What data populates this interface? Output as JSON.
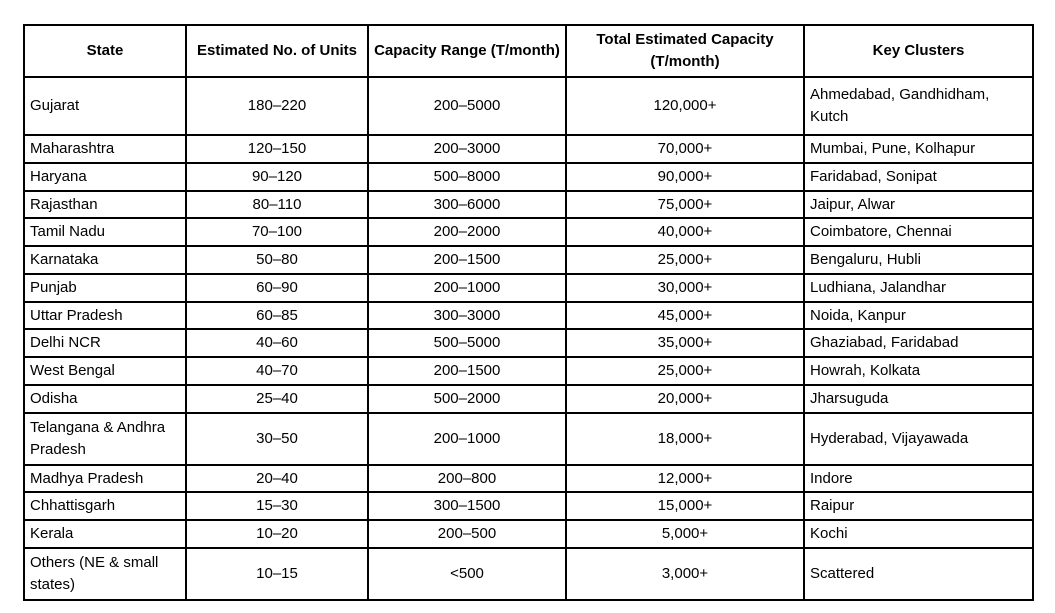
{
  "table": {
    "headers": [
      "State",
      "Estimated No. of Units",
      "Capacity Range (T/month)",
      "Total Estimated Capacity (T/month)",
      "Key Clusters"
    ],
    "rows": [
      {
        "state": "Gujarat",
        "units": "180–220",
        "range": "200–5000",
        "capacity": "120,000+",
        "clusters": "Ahmedabad, Gandhidham, Kutch"
      },
      {
        "state": "Maharashtra",
        "units": "120–150",
        "range": "200–3000",
        "capacity": "70,000+",
        "clusters": "Mumbai, Pune, Kolhapur"
      },
      {
        "state": "Haryana",
        "units": "90–120",
        "range": "500–8000",
        "capacity": "90,000+",
        "clusters": "Faridabad, Sonipat"
      },
      {
        "state": "Rajasthan",
        "units": "80–110",
        "range": "300–6000",
        "capacity": "75,000+",
        "clusters": "Jaipur, Alwar"
      },
      {
        "state": "Tamil Nadu",
        "units": "70–100",
        "range": "200–2000",
        "capacity": "40,000+",
        "clusters": "Coimbatore, Chennai"
      },
      {
        "state": "Karnataka",
        "units": "50–80",
        "range": "200–1500",
        "capacity": "25,000+",
        "clusters": "Bengaluru, Hubli"
      },
      {
        "state": "Punjab",
        "units": "60–90",
        "range": "200–1000",
        "capacity": "30,000+",
        "clusters": "Ludhiana, Jalandhar"
      },
      {
        "state": "Uttar Pradesh",
        "units": "60–85",
        "range": "300–3000",
        "capacity": "45,000+",
        "clusters": "Noida, Kanpur"
      },
      {
        "state": "Delhi NCR",
        "units": "40–60",
        "range": "500–5000",
        "capacity": "35,000+",
        "clusters": "Ghaziabad, Faridabad"
      },
      {
        "state": "West Bengal",
        "units": "40–70",
        "range": "200–1500",
        "capacity": "25,000+",
        "clusters": "Howrah, Kolkata"
      },
      {
        "state": "Odisha",
        "units": "25–40",
        "range": "500–2000",
        "capacity": "20,000+",
        "clusters": "Jharsuguda"
      },
      {
        "state": "Telangana & Andhra Pradesh",
        "units": "30–50",
        "range": "200–1000",
        "capacity": "18,000+",
        "clusters": "Hyderabad, Vijayawada"
      },
      {
        "state": "Madhya Pradesh",
        "units": "20–40",
        "range": "200–800",
        "capacity": "12,000+",
        "clusters": "Indore"
      },
      {
        "state": "Chhattisgarh",
        "units": "15–30",
        "range": "300–1500",
        "capacity": "15,000+",
        "clusters": "Raipur"
      },
      {
        "state": "Kerala",
        "units": "10–20",
        "range": "200–500",
        "capacity": "5,000+",
        "clusters": "Kochi"
      },
      {
        "state": "Others (NE & small states)",
        "units": "10–15",
        "range": "<500",
        "capacity": "3,000+",
        "clusters": "Scattered"
      }
    ]
  }
}
